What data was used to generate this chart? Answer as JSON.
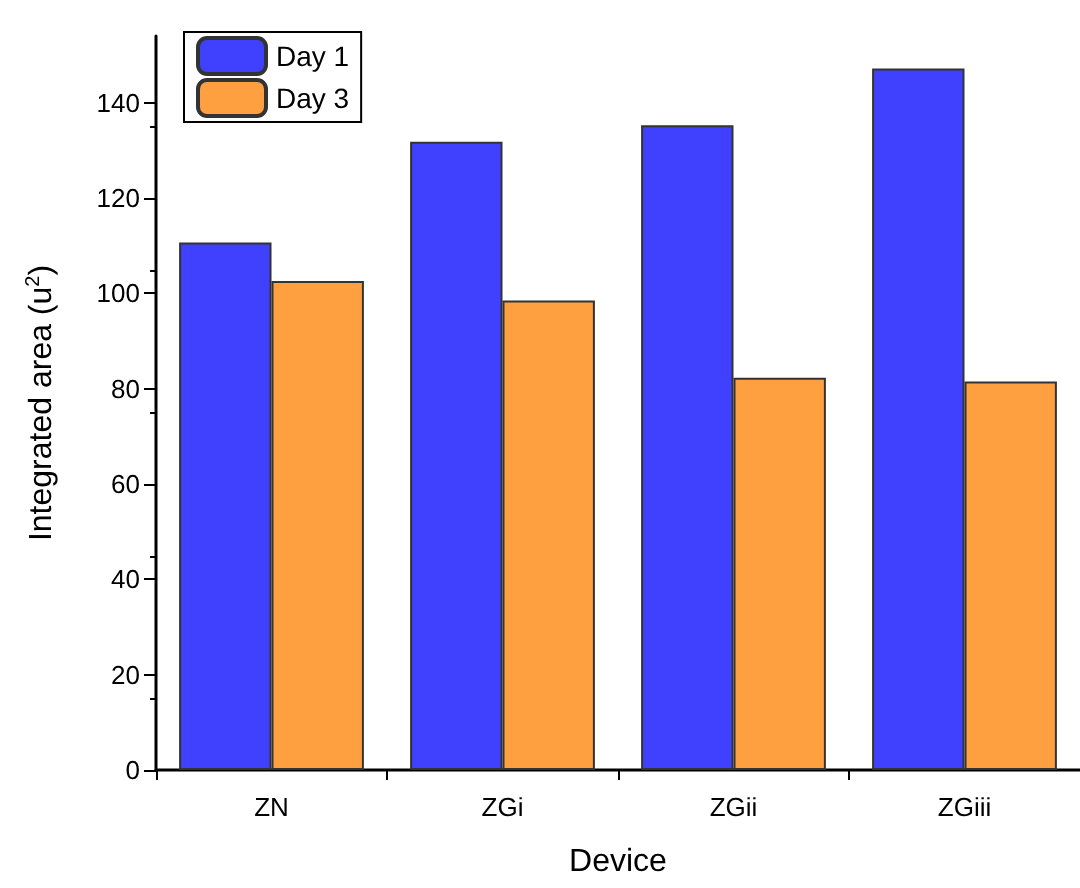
{
  "chart_data": {
    "type": "bar",
    "xlabel": "Device",
    "ylabel": "Integrated area (u$^{2}$)",
    "categories": [
      "ZN",
      "ZGi",
      "ZGii",
      "ZGiii"
    ],
    "series": [
      {
        "name": "Day 1",
        "color": "#4040ff",
        "values": [
          110.7,
          131.8,
          135.3,
          147.2
        ]
      },
      {
        "name": "Day 3",
        "color": "#ffa040",
        "values": [
          102.6,
          98.5,
          82.3,
          81.5
        ]
      }
    ],
    "ylim": [
      0,
      154
    ],
    "yticks": [
      0,
      20,
      40,
      60,
      80,
      100,
      120,
      140
    ],
    "grid": false,
    "legend": "top left"
  }
}
